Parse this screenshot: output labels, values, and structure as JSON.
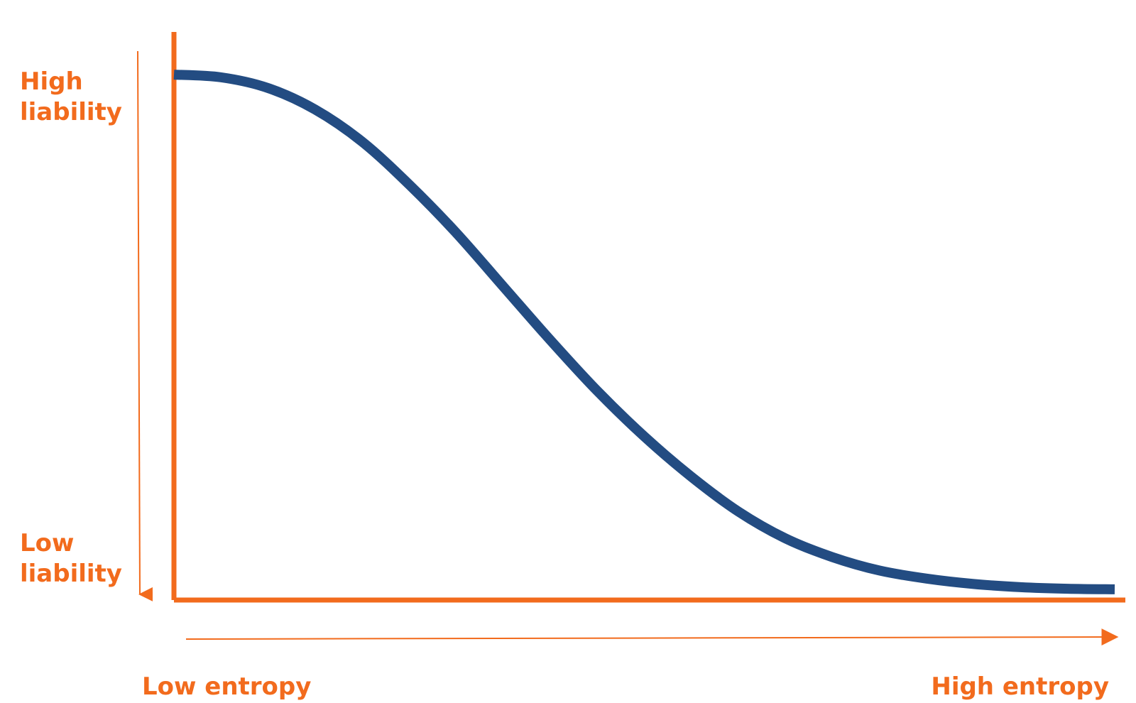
{
  "chart_data": {
    "type": "line",
    "title": "",
    "xlabel": "",
    "ylabel": "",
    "y_axis_labels": {
      "top": [
        "High",
        "liability"
      ],
      "bottom": [
        "Low",
        "liability"
      ]
    },
    "x_axis_labels": {
      "left": "Low entropy",
      "right": "High entropy"
    },
    "xlim": [
      0,
      1
    ],
    "ylim": [
      0,
      1
    ],
    "grid": false,
    "legend": "none",
    "series": [
      {
        "x": [
          0,
          0.05,
          0.1,
          0.15,
          0.2,
          0.25,
          0.3,
          0.35,
          0.4,
          0.45,
          0.5,
          0.55,
          0.6,
          0.65,
          0.7,
          0.75,
          0.8,
          0.85,
          0.9,
          0.95,
          1.0
        ],
        "values": [
          0.98,
          0.975,
          0.955,
          0.915,
          0.855,
          0.775,
          0.685,
          0.585,
          0.485,
          0.39,
          0.305,
          0.23,
          0.165,
          0.115,
          0.08,
          0.055,
          0.04,
          0.03,
          0.024,
          0.021,
          0.02
        ]
      }
    ]
  },
  "colors": {
    "axis": "#f26b1d",
    "curve": "#234c82",
    "label": "#f26b1d"
  }
}
